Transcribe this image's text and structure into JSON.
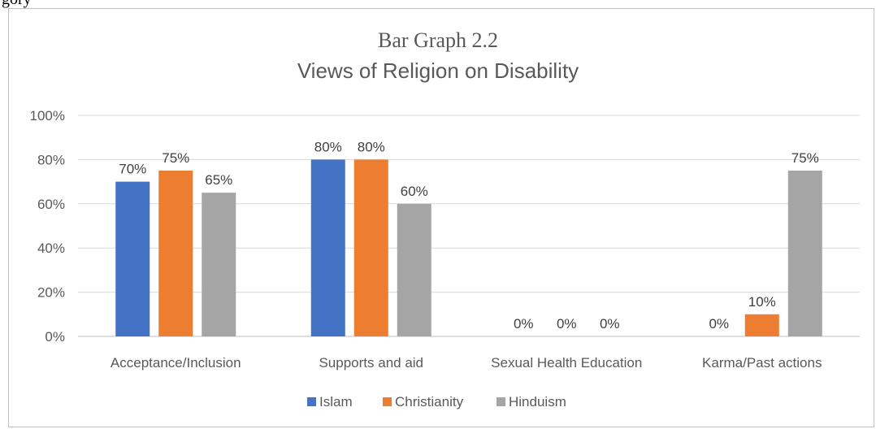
{
  "page_fragment_text": "gory",
  "chart_data": {
    "type": "bar",
    "title": "Bar Graph 2.2",
    "subtitle": "Views of Religion on Disability",
    "categories": [
      "Acceptance/Inclusion",
      "Supports and aid",
      "Sexual Health Education",
      "Karma/Past actions"
    ],
    "series": [
      {
        "name": "Islam",
        "color": "#4472c4",
        "values": [
          70,
          80,
          0,
          0
        ]
      },
      {
        "name": "Christianity",
        "color": "#ed7d31",
        "values": [
          75,
          80,
          0,
          10
        ]
      },
      {
        "name": "Hinduism",
        "color": "#a5a5a5",
        "values": [
          65,
          60,
          0,
          75
        ]
      }
    ],
    "ylim": [
      0,
      100
    ],
    "yticks": [
      "0%",
      "20%",
      "40%",
      "60%",
      "80%",
      "100%"
    ],
    "value_format": "percent",
    "grid": true,
    "legend_position": "bottom"
  }
}
